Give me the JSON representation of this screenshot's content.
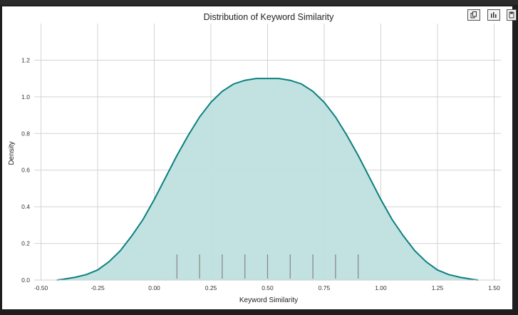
{
  "chart_data": {
    "type": "area",
    "title": "Distribution of Keyword Similarity",
    "xlabel": "Keyword Similarity",
    "ylabel": "Density",
    "xlim": [
      -0.53,
      1.53
    ],
    "ylim": [
      0,
      1.4
    ],
    "xticks": [
      "-0.50",
      "-0.25",
      "0.00",
      "0.25",
      "0.50",
      "0.75",
      "1.00",
      "1.25",
      "1.50"
    ],
    "yticks": [
      "0.0",
      "0.2",
      "0.4",
      "0.6",
      "0.8",
      "1.0",
      "1.2"
    ],
    "xtick_values": [
      -0.5,
      -0.25,
      0,
      0.25,
      0.5,
      0.75,
      1.0,
      1.25,
      1.5
    ],
    "ytick_values": [
      0,
      0.2,
      0.4,
      0.6,
      0.8,
      1.0,
      1.2
    ],
    "grid": true,
    "series": [
      {
        "kind": "kde",
        "x": [
          -0.43,
          -0.4,
          -0.35,
          -0.3,
          -0.25,
          -0.2,
          -0.15,
          -0.1,
          -0.05,
          0.0,
          0.05,
          0.1,
          0.15,
          0.2,
          0.25,
          0.3,
          0.35,
          0.4,
          0.45,
          0.5,
          0.55,
          0.6,
          0.65,
          0.7,
          0.75,
          0.8,
          0.85,
          0.9,
          0.95,
          1.0,
          1.05,
          1.1,
          1.15,
          1.2,
          1.25,
          1.3,
          1.35,
          1.4,
          1.43
        ],
        "y": [
          0.0,
          0.005,
          0.015,
          0.03,
          0.055,
          0.1,
          0.16,
          0.24,
          0.33,
          0.44,
          0.56,
          0.68,
          0.79,
          0.89,
          0.97,
          1.03,
          1.07,
          1.09,
          1.1,
          1.1,
          1.1,
          1.09,
          1.07,
          1.03,
          0.97,
          0.89,
          0.79,
          0.68,
          0.56,
          0.44,
          0.33,
          0.24,
          0.16,
          0.1,
          0.055,
          0.03,
          0.015,
          0.005,
          0.0
        ]
      }
    ],
    "rug": [
      0.1,
      0.2,
      0.3,
      0.4,
      0.5,
      0.6,
      0.7,
      0.8,
      0.9
    ],
    "colors": {
      "line": "#0b7f7f",
      "fill": "#bfe0df",
      "rug": "#8a8a8a",
      "grid": "#d3d3d3"
    }
  },
  "toolbar": {
    "icons": [
      "copy-icon",
      "bar-chart-icon",
      "save-icon"
    ]
  }
}
